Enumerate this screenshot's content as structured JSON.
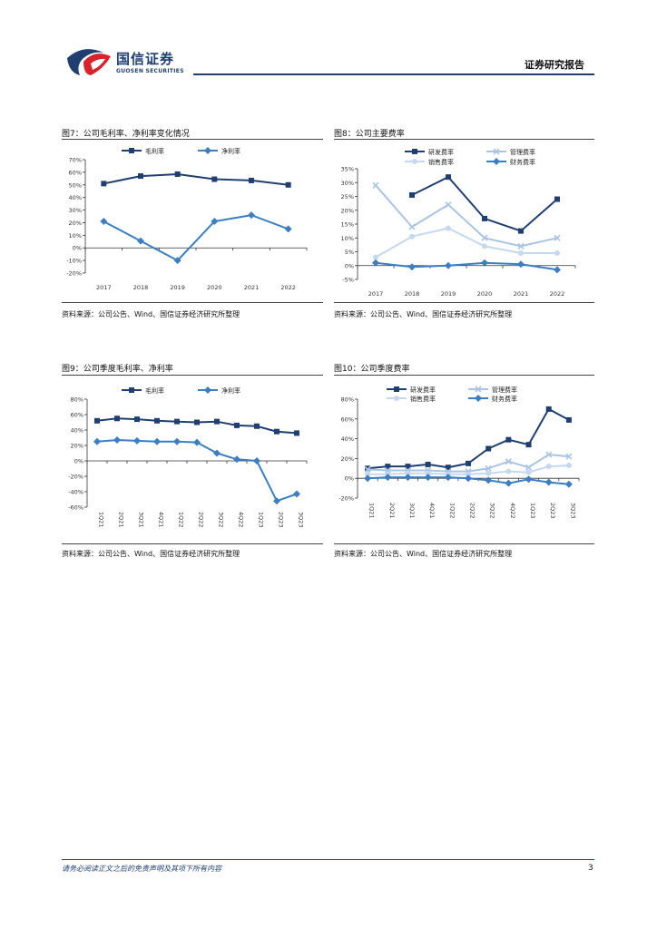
{
  "header": {
    "brand_name": "国信证券",
    "brand_sub": "GUOSEN SECURITIES",
    "report_type": "证券研究报告"
  },
  "footer": {
    "disclaimer": "请务必阅读正文之后的免责声明及其项下所有内容",
    "page_number": "3"
  },
  "colors": {
    "navy": "#1f3f72",
    "mid_blue": "#3b7ec2",
    "light_blue": "#a9c4e4",
    "pale_blue": "#c5d9ee",
    "brand_red": "#d8232a"
  },
  "figures": [
    {
      "title": "图7：公司毛利率、净利率变化情况",
      "source": "资料来源：公司公告、Wind、国信证券经济研究所整理"
    },
    {
      "title": "图8：公司主要费率",
      "source": "资料来源：公司公告、Wind、国信证券经济研究所整理"
    },
    {
      "title": "图9：公司季度毛利率、净利率",
      "source": "资料来源：公司公告、Wind、国信证券经济研究所整理"
    },
    {
      "title": "图10：公司季度费率",
      "source": "资料来源：公司公告、Wind、国信证券经济研究所整理"
    }
  ],
  "chart_data": [
    {
      "type": "line",
      "legend_position": "top",
      "grid": false,
      "categories": [
        "2017",
        "2018",
        "2019",
        "2020",
        "2021",
        "2022"
      ],
      "ylim": [
        -20,
        70
      ],
      "yticks": [
        -20,
        -10,
        0,
        10,
        20,
        30,
        40,
        50,
        60,
        70
      ],
      "yticklabels": [
        "-20%",
        "-10%",
        "0%",
        "10%",
        "20%",
        "30%",
        "40%",
        "50%",
        "60%",
        "70%"
      ],
      "series": [
        {
          "name": "毛利率",
          "color": "#1f3f72",
          "marker": "square",
          "values": [
            51,
            57,
            58.5,
            54.5,
            53.5,
            50
          ]
        },
        {
          "name": "净利率",
          "color": "#3b7ec2",
          "marker": "diamond",
          "values": [
            21,
            5.5,
            -10,
            21,
            26,
            15
          ]
        }
      ]
    },
    {
      "type": "line",
      "legend_position": "top",
      "grid": false,
      "categories": [
        "2017",
        "2018",
        "2019",
        "2020",
        "2021",
        "2022"
      ],
      "ylim": [
        -5,
        35
      ],
      "yticks": [
        -5,
        0,
        5,
        10,
        15,
        20,
        25,
        30,
        35
      ],
      "yticklabels": [
        "-5%",
        "0%",
        "5%",
        "10%",
        "15%",
        "20%",
        "25%",
        "30%",
        "35%"
      ],
      "series": [
        {
          "name": "研发费率",
          "color": "#1f3f72",
          "marker": "square",
          "values": [
            null,
            25.5,
            32,
            17,
            12.5,
            24
          ]
        },
        {
          "name": "管理费率",
          "color": "#a9c4e4",
          "marker": "x",
          "values": [
            29,
            14,
            22,
            10,
            7,
            10
          ]
        },
        {
          "name": "销售费率",
          "color": "#c5d9ee",
          "marker": "circle",
          "values": [
            3,
            10.5,
            13.5,
            7,
            4.5,
            4.5
          ]
        },
        {
          "name": "财务费率",
          "color": "#3b7ec2",
          "marker": "diamond",
          "values": [
            1,
            -0.5,
            0,
            1,
            0.5,
            -1.5
          ]
        }
      ]
    },
    {
      "type": "line",
      "legend_position": "top",
      "grid": false,
      "categories": [
        "1Q21",
        "2Q21",
        "3Q21",
        "4Q21",
        "1Q22",
        "2Q22",
        "3Q22",
        "4Q22",
        "1Q23",
        "2Q23",
        "3Q23"
      ],
      "ylim": [
        -60,
        80
      ],
      "yticks": [
        -60,
        -40,
        -20,
        0,
        20,
        40,
        60,
        80
      ],
      "yticklabels": [
        "-60%",
        "-40%",
        "-20%",
        "0%",
        "20%",
        "40%",
        "60%",
        "80%"
      ],
      "series": [
        {
          "name": "毛利率",
          "color": "#1f3f72",
          "marker": "square",
          "values": [
            52,
            55,
            54,
            52,
            51,
            50,
            51,
            46,
            45,
            38,
            36
          ]
        },
        {
          "name": "净利率",
          "color": "#3b7ec2",
          "marker": "diamond",
          "values": [
            25,
            27,
            26,
            25,
            25,
            24,
            10,
            2,
            0,
            -52,
            -43
          ]
        }
      ]
    },
    {
      "type": "line",
      "legend_position": "top",
      "grid": false,
      "categories": [
        "1Q21",
        "2Q21",
        "3Q21",
        "4Q21",
        "1Q22",
        "2Q22",
        "3Q22",
        "4Q22",
        "1Q23",
        "2Q23",
        "3Q23"
      ],
      "ylim": [
        -20,
        80
      ],
      "yticks": [
        -20,
        0,
        20,
        40,
        60,
        80
      ],
      "yticklabels": [
        "-20%",
        "0%",
        "20%",
        "40%",
        "60%",
        "80%"
      ],
      "series": [
        {
          "name": "研发费率",
          "color": "#1f3f72",
          "marker": "square",
          "values": [
            10,
            12,
            12,
            14,
            11,
            15,
            30,
            39,
            34,
            70,
            59
          ]
        },
        {
          "name": "管理费率",
          "color": "#a9c4e4",
          "marker": "x",
          "values": [
            9,
            8,
            8,
            8,
            7,
            7,
            10,
            17,
            11,
            24,
            22
          ]
        },
        {
          "name": "销售费率",
          "color": "#c5d9ee",
          "marker": "circle",
          "values": [
            4,
            4,
            5,
            5,
            4,
            4,
            5,
            7,
            6,
            12,
            13
          ]
        },
        {
          "name": "财务费率",
          "color": "#3b7ec2",
          "marker": "diamond",
          "values": [
            0,
            1,
            1,
            1,
            1,
            0,
            -2,
            -5,
            -1,
            -4,
            -6
          ]
        }
      ]
    }
  ]
}
